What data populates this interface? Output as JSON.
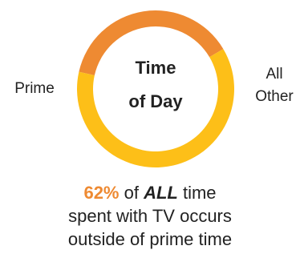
{
  "chart_data": {
    "type": "pie",
    "style": "donut",
    "categories": [
      "Prime",
      "All Other"
    ],
    "values": [
      38,
      62
    ],
    "unit": "%",
    "colors": [
      "#EE8A32",
      "#FDBF18"
    ],
    "center_label": [
      "Time",
      "of Day"
    ],
    "slice_labels": {
      "prime": "Prime",
      "other": [
        "All",
        "Other"
      ]
    }
  },
  "caption": {
    "percent": "62%",
    "word1": " of ",
    "emphasis": "ALL",
    "word2": " time",
    "line2": "spent with TV occurs",
    "line3": "outside of prime time"
  }
}
